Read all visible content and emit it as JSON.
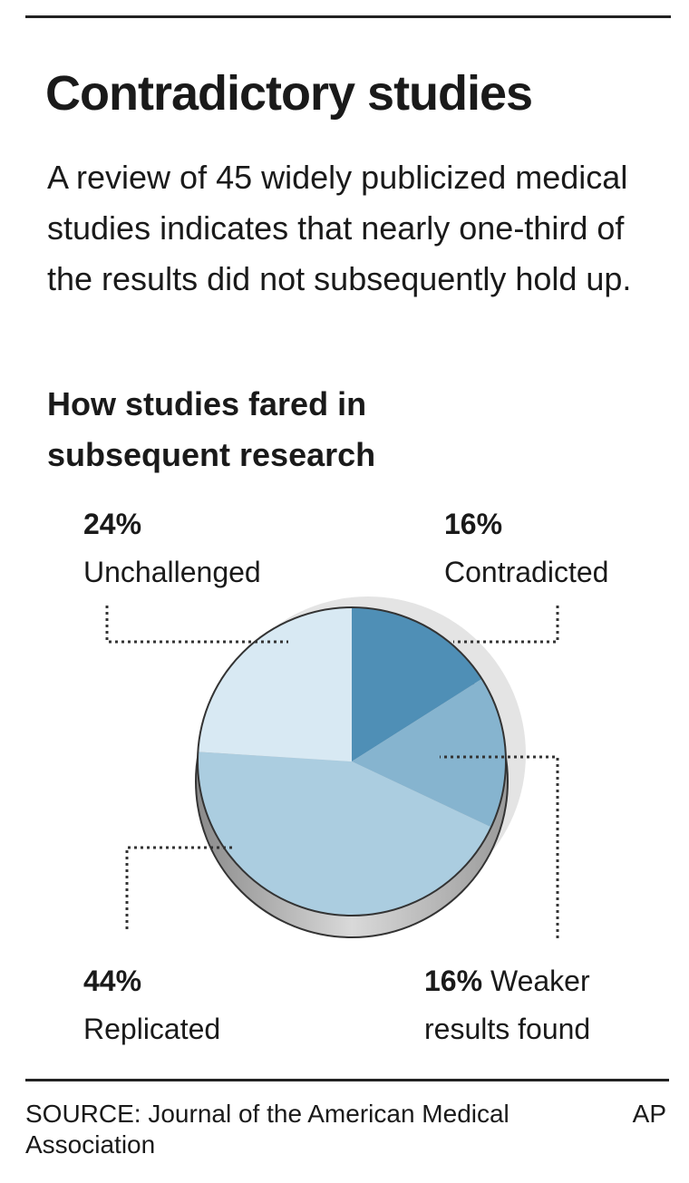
{
  "chart_data": {
    "type": "pie",
    "title": "Contradictory studies",
    "subtitle": "A review of 45 widely publicized medical studies indicates that nearly one-third of the results did not subsequently hold up.",
    "chart_title": "How studies fared in subsequent research",
    "categories": [
      "Contradicted",
      "Weaker results found",
      "Replicated",
      "Unchallenged"
    ],
    "values": [
      16,
      16,
      44,
      24
    ],
    "value_labels": [
      "16%",
      "16%",
      "44%",
      "24%"
    ],
    "colors": [
      "#4f8fb6",
      "#86b4cf",
      "#abcde0",
      "#d8e9f3"
    ],
    "source": "SOURCE: Journal of the American Medical Association",
    "credit": "AP"
  }
}
